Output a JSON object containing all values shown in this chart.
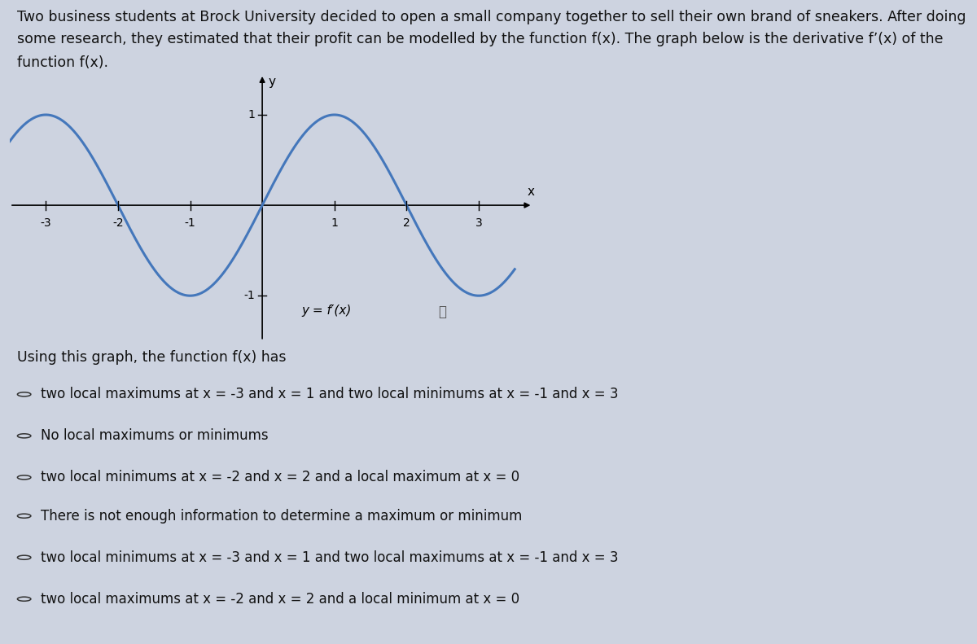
{
  "question_text": "Using this graph, the function f(x) has",
  "options": [
    "two local maximums at x = -3 and x = 1 and two local minimums at x = -1 and x = 3",
    "No local maximums or minimums",
    "two local minimums at x = -2 and x = 2 and a local maximum at x = 0",
    "There is not enough information to determine a maximum or minimum",
    "two local minimums at x = -3 and x = 1 and two local maximums at x = -1 and x = 3",
    "two local maximums at x = -2 and x = 2 and a local minimum at x = 0"
  ],
  "graph_xlim": [
    -3.5,
    3.8
  ],
  "graph_ylim": [
    -1.5,
    1.5
  ],
  "x_ticks": [
    -3,
    -2,
    -1,
    1,
    2,
    3
  ],
  "y_tick_1": 1,
  "y_tick_neg1": -1,
  "curve_color": "#4477bb",
  "curve_linewidth": 2.2,
  "background_color": "#cdd3e0",
  "text_color": "#111111",
  "font_size_para": 12.5,
  "font_size_options": 12,
  "para_line1": "Two business students at Brock University decided to open a small company together to sell their own brand of sneakers. After doing",
  "para_line2": "some research, they estimated that their profit can be modelled by the function f(x). The graph below is the derivative f’(x) of the",
  "para_line3": "function f(x).",
  "label_y": "y",
  "label_x": "x",
  "curve_label": "y = f ′(x)"
}
